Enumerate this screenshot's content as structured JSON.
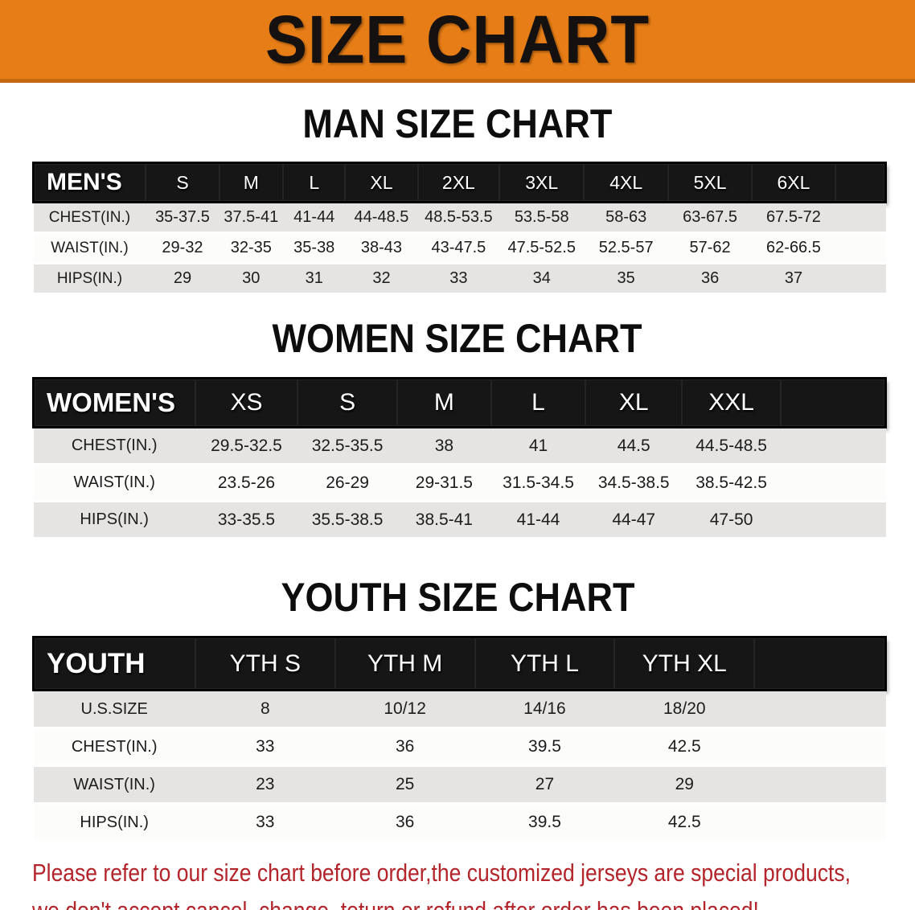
{
  "banner": {
    "title": "SIZE CHART"
  },
  "sections": [
    {
      "heading": "MAN SIZE CHART",
      "header_label": "MEN'S",
      "columns": [
        "S",
        "M",
        "L",
        "XL",
        "2XL",
        "3XL",
        "4XL",
        "5XL",
        "6XL"
      ],
      "rows": [
        {
          "label": "CHEST(IN.)",
          "values": [
            "35-37.5",
            "37.5-41",
            "41-44",
            "44-48.5",
            "48.5-53.5",
            "53.5-58",
            "58-63",
            "63-67.5",
            "67.5-72"
          ]
        },
        {
          "label": "WAIST(IN.)",
          "values": [
            "29-32",
            "32-35",
            "35-38",
            "38-43",
            "43-47.5",
            "47.5-52.5",
            "52.5-57",
            "57-62",
            "62-66.5"
          ]
        },
        {
          "label": "HIPS(IN.)",
          "values": [
            "29",
            "30",
            "31",
            "32",
            "33",
            "34",
            "35",
            "36",
            "37"
          ]
        }
      ]
    },
    {
      "heading": "WOMEN SIZE CHART",
      "header_label": "WOMEN'S",
      "columns": [
        "XS",
        "S",
        "M",
        "L",
        "XL",
        "XXL"
      ],
      "rows": [
        {
          "label": "CHEST(IN.)",
          "values": [
            "29.5-32.5",
            "32.5-35.5",
            "38",
            "41",
            "44.5",
            "44.5-48.5"
          ]
        },
        {
          "label": "WAIST(IN.)",
          "values": [
            "23.5-26",
            "26-29",
            "29-31.5",
            "31.5-34.5",
            "34.5-38.5",
            "38.5-42.5"
          ]
        },
        {
          "label": "HIPS(IN.)",
          "values": [
            "33-35.5",
            "35.5-38.5",
            "38.5-41",
            "41-44",
            "44-47",
            "47-50"
          ]
        }
      ]
    },
    {
      "heading": "YOUTH SIZE CHART",
      "header_label": "YOUTH",
      "columns": [
        "YTH S",
        "YTH M",
        "YTH L",
        "YTH XL"
      ],
      "rows": [
        {
          "label": "U.S.SIZE",
          "values": [
            "8",
            "10/12",
            "14/16",
            "18/20"
          ]
        },
        {
          "label": "CHEST(IN.)",
          "values": [
            "33",
            "36",
            "39.5",
            "42.5"
          ]
        },
        {
          "label": "WAIST(IN.)",
          "values": [
            "23",
            "25",
            "27",
            "29"
          ]
        },
        {
          "label": "HIPS(IN.)",
          "values": [
            "33",
            "36",
            "39.5",
            "42.5"
          ]
        }
      ]
    }
  ],
  "disclaimer": {
    "line1": "Please refer to our size chart before order,the customized jerseys are special products,",
    "line2": "we don't accept cancel, change, teturn or refund after order has been placed!"
  },
  "colors": {
    "banner_bg": "#e67d17",
    "banner_edge": "#c4690f",
    "header_bar": "#171616",
    "row_alt_gray": "#e5e4e2",
    "disclaimer_red": "#b3242b"
  }
}
